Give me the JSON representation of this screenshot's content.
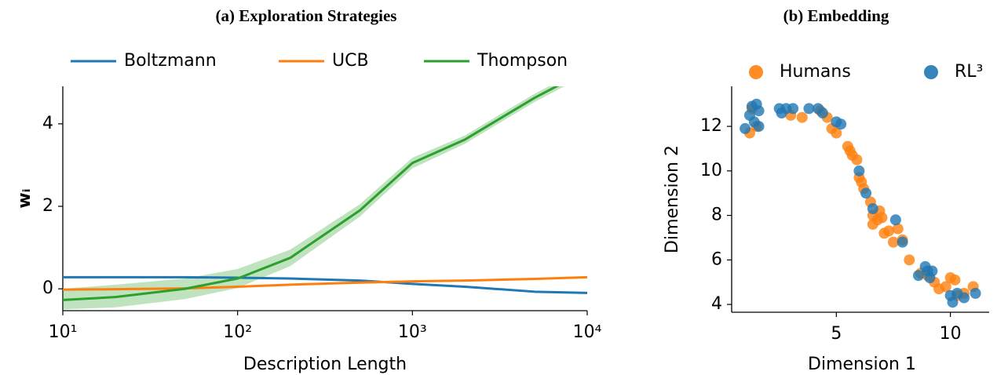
{
  "chart_data": [
    {
      "type": "line",
      "title": "(a) Exploration Strategies",
      "xlabel": "Description Length",
      "ylabel": "wᵢ",
      "xscale": "log",
      "x": [
        10,
        20,
        50,
        100,
        200,
        500,
        1000,
        2000,
        5000,
        10000
      ],
      "series": [
        {
          "name": "Boltzmann",
          "color": "#1f77b4",
          "values": [
            0.28,
            0.28,
            0.28,
            0.27,
            0.25,
            0.2,
            0.12,
            0.05,
            -0.07,
            -0.1
          ]
        },
        {
          "name": "UCB",
          "color": "#ff7f0e",
          "values": [
            -0.02,
            -0.01,
            0.01,
            0.05,
            0.1,
            0.15,
            0.18,
            0.2,
            0.24,
            0.28
          ]
        },
        {
          "name": "Thompson",
          "color": "#2ca02c",
          "values": [
            -0.27,
            -0.2,
            0.0,
            0.25,
            0.75,
            1.9,
            3.05,
            3.62,
            4.63,
            5.3
          ],
          "lower": [
            -0.5,
            -0.45,
            -0.25,
            0.02,
            0.55,
            1.75,
            2.92,
            3.52,
            4.53,
            5.2
          ],
          "upper": [
            0.0,
            0.1,
            0.25,
            0.48,
            0.95,
            2.05,
            3.18,
            3.72,
            4.73,
            5.4
          ]
        }
      ],
      "xlim": [
        10,
        10000
      ],
      "ylim": [
        -0.53,
        4.91
      ],
      "xticks": [
        {
          "value": 10,
          "label": "10¹"
        },
        {
          "value": 100,
          "label": "10²"
        },
        {
          "value": 1000,
          "label": "10³"
        },
        {
          "value": 10000,
          "label": "10⁴"
        }
      ],
      "yticks": [
        0,
        2,
        4
      ],
      "legend": "top"
    },
    {
      "type": "scatter",
      "title": "(b) Embedding",
      "xlabel": "Dimension 1",
      "ylabel": "Dimension 2",
      "series": [
        {
          "name": "Humans",
          "color": "#ff7f0e",
          "x": [
            1.2,
            1.3,
            1.5,
            3.0,
            3.5,
            4.3,
            4.6,
            4.8,
            5.0,
            5.5,
            5.6,
            5.7,
            5.9,
            6.0,
            6.1,
            6.2,
            6.5,
            6.6,
            6.6,
            6.8,
            6.9,
            7.0,
            7.1,
            7.3,
            7.5,
            7.7,
            7.9,
            8.2,
            8.7,
            9.0,
            9.3,
            9.5,
            9.8,
            10.0,
            10.2,
            10.3,
            10.6,
            11.0
          ],
          "values": [
            11.7,
            12.8,
            12.0,
            12.5,
            12.4,
            12.7,
            12.4,
            11.9,
            11.7,
            11.1,
            10.9,
            10.7,
            10.5,
            9.7,
            9.5,
            9.2,
            8.6,
            8.0,
            7.6,
            7.8,
            8.2,
            7.9,
            7.2,
            7.3,
            6.8,
            7.4,
            6.9,
            6.0,
            5.4,
            5.3,
            5.0,
            4.7,
            4.8,
            5.2,
            5.1,
            4.4,
            4.5,
            4.8
          ]
        },
        {
          "name": "RL³",
          "color": "#1f77b4",
          "x": [
            1.0,
            1.2,
            1.3,
            1.4,
            1.5,
            1.6,
            1.6,
            2.5,
            2.6,
            2.8,
            3.1,
            3.8,
            4.2,
            4.4,
            5.0,
            5.2,
            6.0,
            6.3,
            6.6,
            7.6,
            7.9,
            8.6,
            8.9,
            9.0,
            9.1,
            9.2,
            10.0,
            10.1,
            10.3,
            10.6,
            11.1
          ],
          "values": [
            11.9,
            12.5,
            12.9,
            12.2,
            13.0,
            12.7,
            12.0,
            12.8,
            12.6,
            12.8,
            12.8,
            12.8,
            12.8,
            12.6,
            12.2,
            12.1,
            10.0,
            9.0,
            8.3,
            7.8,
            6.8,
            5.3,
            5.7,
            5.5,
            5.2,
            5.5,
            4.4,
            4.1,
            4.5,
            4.3,
            4.5
          ]
        }
      ],
      "xlim": [
        0.41,
        11.7
      ],
      "ylim": [
        3.65,
        13.8
      ],
      "xticks": [
        5,
        10
      ],
      "yticks": [
        4,
        6,
        8,
        10,
        12
      ],
      "legend": "top"
    }
  ]
}
